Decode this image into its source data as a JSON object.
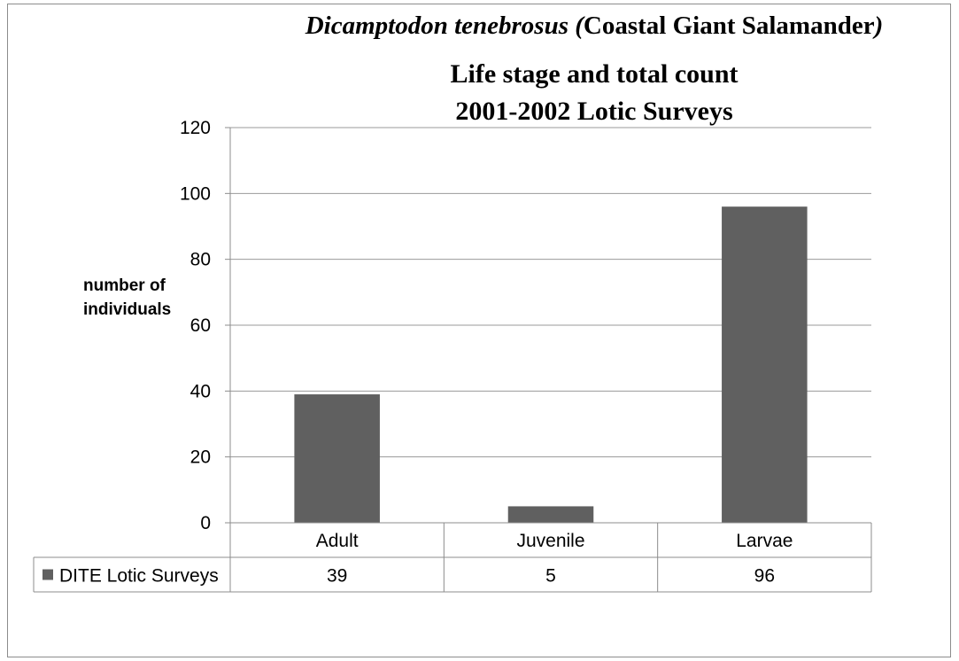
{
  "chart_data": {
    "type": "bar",
    "title_italic": "Dicamptodon tenebrosus (",
    "title_rest": "Coastal Giant Salamander",
    "title_close": ")",
    "title_line2": "Life stage and total count",
    "title_line3": "2001-2002 Lotic Surveys",
    "ylabel_line1": "number of",
    "ylabel_line2": "individuals",
    "xlabel": "",
    "ylim": [
      0,
      120
    ],
    "yticks": [
      0,
      20,
      40,
      60,
      80,
      100,
      120
    ],
    "grid": true,
    "categories": [
      "Adult",
      "Juvenile",
      "Larvae"
    ],
    "series": [
      {
        "name": "DITE Lotic Surveys",
        "values": [
          39,
          5,
          96
        ]
      }
    ],
    "data_table": true,
    "colors": {
      "bar": "#606060",
      "grid": "#9a9a9a",
      "axis": "#8c8c8c"
    }
  }
}
